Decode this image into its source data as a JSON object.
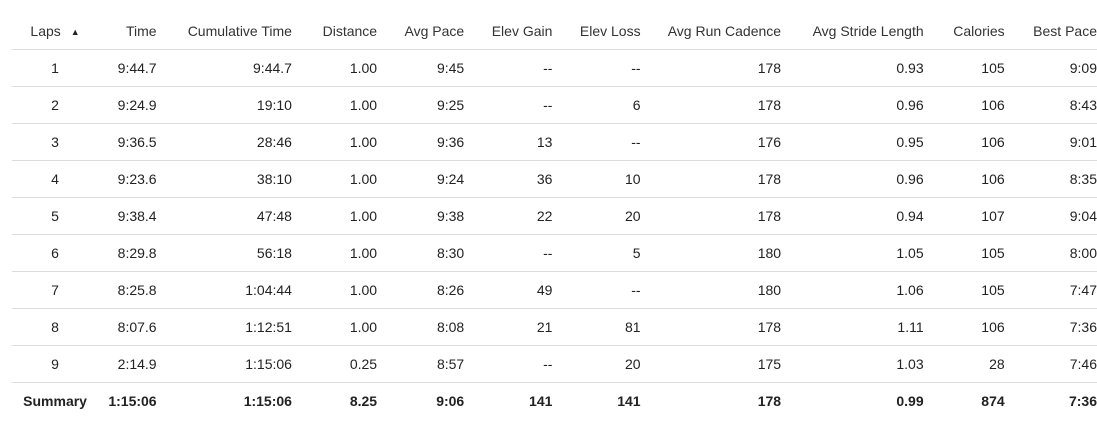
{
  "columns": {
    "laps": "Laps",
    "time": "Time",
    "cumulative_time": "Cumulative Time",
    "distance": "Distance",
    "avg_pace": "Avg Pace",
    "elev_gain": "Elev Gain",
    "elev_loss": "Elev Loss",
    "avg_run_cadence": "Avg Run Cadence",
    "avg_stride_length": "Avg Stride Length",
    "calories": "Calories",
    "best_pace": "Best Pace"
  },
  "sort": {
    "column": "laps",
    "direction": "ascending",
    "icon": "sort-ascending-icon",
    "glyph": "▲"
  },
  "rows": [
    [
      "1",
      "9:44.7",
      "9:44.7",
      "1.00",
      "9:45",
      "--",
      "--",
      "178",
      "0.93",
      "105",
      "9:09"
    ],
    [
      "2",
      "9:24.9",
      "19:10",
      "1.00",
      "9:25",
      "--",
      "6",
      "178",
      "0.96",
      "106",
      "8:43"
    ],
    [
      "3",
      "9:36.5",
      "28:46",
      "1.00",
      "9:36",
      "13",
      "--",
      "176",
      "0.95",
      "106",
      "9:01"
    ],
    [
      "4",
      "9:23.6",
      "38:10",
      "1.00",
      "9:24",
      "36",
      "10",
      "178",
      "0.96",
      "106",
      "8:35"
    ],
    [
      "5",
      "9:38.4",
      "47:48",
      "1.00",
      "9:38",
      "22",
      "20",
      "178",
      "0.94",
      "107",
      "9:04"
    ],
    [
      "6",
      "8:29.8",
      "56:18",
      "1.00",
      "8:30",
      "--",
      "5",
      "180",
      "1.05",
      "105",
      "8:00"
    ],
    [
      "7",
      "8:25.8",
      "1:04:44",
      "1.00",
      "8:26",
      "49",
      "--",
      "180",
      "1.06",
      "105",
      "7:47"
    ],
    [
      "8",
      "8:07.6",
      "1:12:51",
      "1.00",
      "8:08",
      "21",
      "81",
      "178",
      "1.11",
      "106",
      "7:36"
    ],
    [
      "9",
      "2:14.9",
      "1:15:06",
      "0.25",
      "8:57",
      "--",
      "20",
      "175",
      "1.03",
      "28",
      "7:46"
    ]
  ],
  "summary": [
    "Summary",
    "1:15:06",
    "1:15:06",
    "8.25",
    "9:06",
    "141",
    "141",
    "178",
    "0.99",
    "874",
    "7:36"
  ]
}
